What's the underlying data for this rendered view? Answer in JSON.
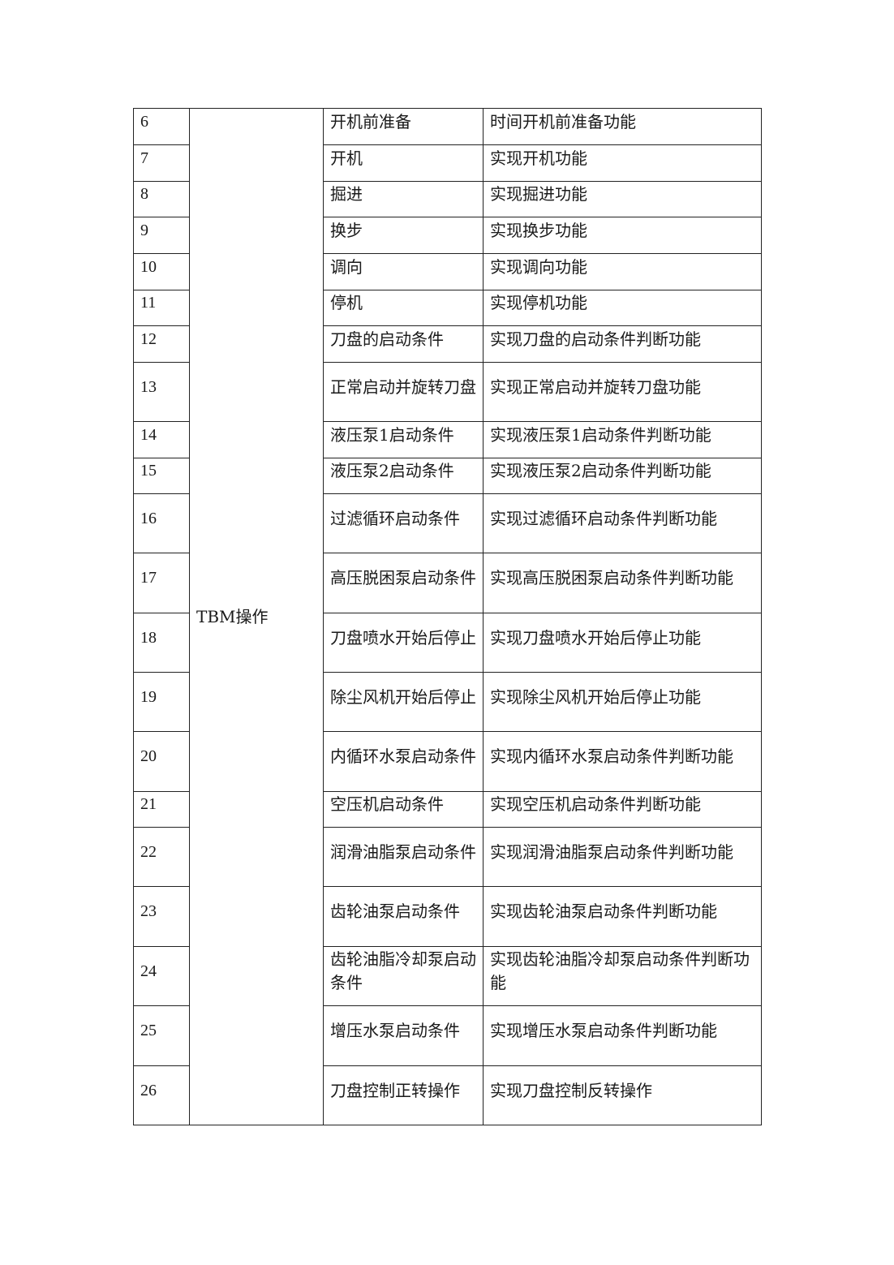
{
  "table": {
    "group_label": "TBM操作",
    "rows": [
      {
        "no": "6",
        "name": "开机前准备",
        "desc": "时间开机前准备功能",
        "h": 45
      },
      {
        "no": "7",
        "name": "开机",
        "desc": "实现开机功能",
        "h": 45
      },
      {
        "no": "8",
        "name": "掘进",
        "desc": "实现掘进功能",
        "h": 44
      },
      {
        "no": "9",
        "name": "换步",
        "desc": "实现换步功能",
        "h": 45
      },
      {
        "no": "10",
        "name": "调向",
        "desc": "实现调向功能",
        "h": 45
      },
      {
        "no": "11",
        "name": "停机",
        "desc": "实现停机功能",
        "h": 44
      },
      {
        "no": "12",
        "name": "刀盘的启动条件",
        "desc": "实现刀盘的启动条件判断功能",
        "h": 45
      },
      {
        "no": "13",
        "name": "正常启动并旋转刀盘",
        "desc": "实现正常启动并旋转刀盘功能",
        "h": 73
      },
      {
        "no": "14",
        "name": "液压泵1启动条件",
        "desc": "实现液压泵1启动条件判断功能",
        "h": 45
      },
      {
        "no": "15",
        "name": "液压泵2启动条件",
        "desc": "实现液压泵2启动条件判断功能",
        "h": 44
      },
      {
        "no": "16",
        "name": "过滤循环启动条件",
        "desc": "实现过滤循环启动条件判断功能",
        "h": 73
      },
      {
        "no": "17",
        "name": "高压脱困泵启动条件",
        "desc": "实现高压脱困泵启动条件判断功能",
        "h": 74
      },
      {
        "no": "18",
        "name": "刀盘喷水开始后停止",
        "desc": "实现刀盘喷水开始后停止功能",
        "h": 73
      },
      {
        "no": "19",
        "name": "除尘风机开始后停止",
        "desc": "实现除尘风机开始后停止功能",
        "h": 73
      },
      {
        "no": "20",
        "name": "内循环水泵启动条件",
        "desc": "实现内循环水泵启动条件判断功能",
        "h": 74
      },
      {
        "no": "21",
        "name": "空压机启动条件",
        "desc": "实现空压机启动条件判断功能",
        "h": 44
      },
      {
        "no": "22",
        "name": "润滑油脂泵启动条件",
        "desc": "实现润滑油脂泵启动条件判断功能",
        "h": 73
      },
      {
        "no": "23",
        "name": "齿轮油泵启动条件",
        "desc": "实现齿轮油泵启动条件判断功能",
        "h": 74
      },
      {
        "no": "24",
        "name": "齿轮油脂冷却泵启动条件",
        "desc": "实现齿轮油脂冷却泵启动条件判断功能",
        "h": 73
      },
      {
        "no": "25",
        "name": "增压水泵启动条件",
        "desc": "实现增压水泵启动条件判断功能",
        "h": 74
      },
      {
        "no": "26",
        "name": "刀盘控制正转操作",
        "desc": "实现刀盘控制反转操作",
        "h": 73
      }
    ]
  }
}
